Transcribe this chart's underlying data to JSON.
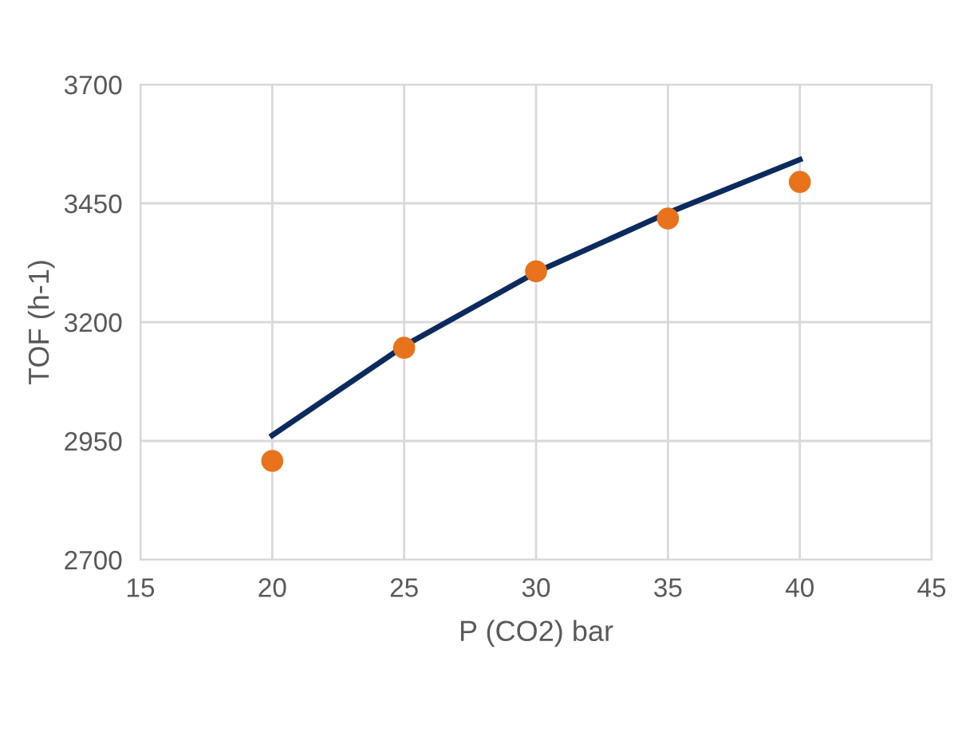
{
  "chart_data": {
    "type": "scatter",
    "xlabel": "P (CO2) bar",
    "ylabel": "TOF (h-1)",
    "xlim": [
      15,
      45
    ],
    "xticks": [
      15,
      20,
      25,
      30,
      35,
      40,
      45
    ],
    "ylim": [
      2700,
      3700
    ],
    "yticks": [
      2700,
      2950,
      3200,
      3450,
      3700
    ],
    "grid": true,
    "marker": "circle",
    "series": [
      {
        "color": "#e8731c",
        "x": [
          20,
          25,
          30,
          35,
          40
        ],
        "values": [
          2908,
          3146,
          3307,
          3418,
          3495
        ]
      },
      {
        "type": "line",
        "color": "#0d2a5e",
        "line_style": "solid",
        "marker": "none",
        "x": [
          20,
          25,
          30,
          35,
          40
        ],
        "values": [
          2962,
          3150,
          3305,
          3430,
          3542
        ]
      }
    ]
  }
}
